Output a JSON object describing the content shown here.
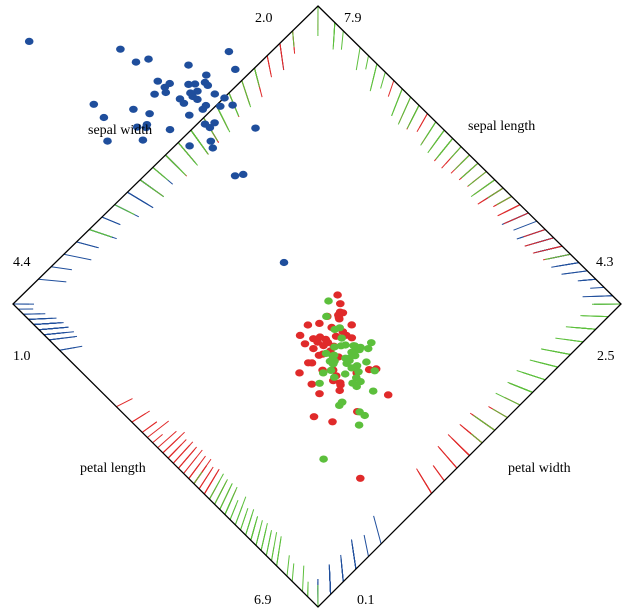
{
  "chart_data": {
    "type": "scatter",
    "variant": "radviz-diamond",
    "anchors": [
      {
        "id": "sepal-length",
        "name": "sepal length",
        "min": "4.3",
        "max": "7.9",
        "corner_labels": [
          "7.9",
          "4.3"
        ]
      },
      {
        "id": "sepal-width",
        "name": "sepal width",
        "min": "2.0",
        "max": "4.4",
        "corner_labels": [
          "2.0",
          "4.4"
        ]
      },
      {
        "id": "petal-length",
        "name": "petal length",
        "min": "1.0",
        "max": "6.9",
        "corner_labels": [
          "1.0",
          "6.9"
        ]
      },
      {
        "id": "petal-width",
        "name": "petal width",
        "min": "0.1",
        "max": "2.5",
        "corner_labels": [
          "0.1",
          "2.5"
        ]
      }
    ],
    "series": [
      {
        "color": "#1f4e9c",
        "values": [
          [
            5.1,
            3.5,
            1.4,
            0.2
          ],
          [
            4.9,
            3.0,
            1.4,
            0.2
          ],
          [
            4.7,
            3.2,
            1.3,
            0.2
          ],
          [
            4.6,
            3.1,
            1.5,
            0.2
          ],
          [
            5.0,
            3.6,
            1.4,
            0.2
          ],
          [
            5.4,
            3.9,
            1.7,
            0.4
          ],
          [
            4.6,
            3.4,
            1.4,
            0.3
          ],
          [
            5.0,
            3.4,
            1.5,
            0.2
          ],
          [
            4.4,
            2.9,
            1.4,
            0.2
          ],
          [
            4.9,
            3.1,
            1.5,
            0.1
          ],
          [
            5.4,
            3.7,
            1.5,
            0.2
          ],
          [
            4.8,
            3.4,
            1.6,
            0.2
          ],
          [
            4.8,
            3.0,
            1.4,
            0.1
          ],
          [
            4.3,
            3.0,
            1.1,
            0.1
          ],
          [
            5.8,
            4.0,
            1.2,
            0.2
          ],
          [
            5.7,
            4.4,
            1.5,
            0.4
          ],
          [
            5.4,
            3.9,
            1.3,
            0.4
          ],
          [
            5.1,
            3.5,
            1.4,
            0.3
          ],
          [
            5.7,
            3.8,
            1.7,
            0.3
          ],
          [
            5.1,
            3.8,
            1.5,
            0.3
          ],
          [
            5.4,
            3.4,
            1.7,
            0.2
          ],
          [
            5.1,
            3.7,
            1.5,
            0.4
          ],
          [
            4.6,
            3.6,
            1.0,
            0.2
          ],
          [
            5.1,
            3.3,
            1.7,
            0.5
          ],
          [
            4.8,
            3.4,
            1.9,
            0.2
          ],
          [
            5.0,
            3.0,
            1.6,
            0.2
          ],
          [
            5.0,
            3.4,
            1.6,
            0.4
          ],
          [
            5.2,
            3.5,
            1.5,
            0.2
          ],
          [
            5.2,
            3.4,
            1.4,
            0.2
          ],
          [
            4.7,
            3.2,
            1.6,
            0.2
          ],
          [
            4.8,
            3.1,
            1.6,
            0.2
          ],
          [
            5.4,
            3.4,
            1.5,
            0.4
          ],
          [
            5.2,
            4.1,
            1.5,
            0.1
          ],
          [
            5.5,
            4.2,
            1.4,
            0.2
          ],
          [
            4.9,
            3.1,
            1.5,
            0.2
          ],
          [
            5.0,
            3.2,
            1.2,
            0.2
          ],
          [
            5.5,
            3.5,
            1.3,
            0.2
          ],
          [
            4.9,
            3.6,
            1.4,
            0.1
          ],
          [
            4.4,
            3.0,
            1.3,
            0.2
          ],
          [
            5.1,
            3.4,
            1.5,
            0.2
          ],
          [
            5.0,
            3.5,
            1.3,
            0.3
          ],
          [
            4.5,
            2.3,
            1.3,
            0.3
          ],
          [
            4.4,
            3.2,
            1.3,
            0.2
          ],
          [
            5.0,
            3.5,
            1.6,
            0.6
          ],
          [
            5.1,
            3.8,
            1.9,
            0.4
          ],
          [
            4.8,
            3.0,
            1.4,
            0.3
          ],
          [
            5.1,
            3.8,
            1.6,
            0.2
          ],
          [
            4.6,
            3.2,
            1.4,
            0.2
          ],
          [
            5.3,
            3.7,
            1.5,
            0.2
          ],
          [
            5.0,
            3.3,
            1.4,
            0.2
          ]
        ]
      },
      {
        "color": "#e02a2a",
        "values": [
          [
            7.0,
            3.2,
            4.7,
            1.4
          ],
          [
            6.4,
            3.2,
            4.5,
            1.5
          ],
          [
            6.9,
            3.1,
            4.9,
            1.5
          ],
          [
            5.5,
            2.3,
            4.0,
            1.3
          ],
          [
            6.5,
            2.8,
            4.6,
            1.5
          ],
          [
            5.7,
            2.8,
            4.5,
            1.3
          ],
          [
            6.3,
            3.3,
            4.7,
            1.6
          ],
          [
            4.9,
            2.4,
            3.3,
            1.0
          ],
          [
            6.6,
            2.9,
            4.6,
            1.3
          ],
          [
            5.2,
            2.7,
            3.9,
            1.4
          ],
          [
            5.0,
            2.0,
            3.5,
            1.0
          ],
          [
            5.9,
            3.0,
            4.2,
            1.5
          ],
          [
            6.0,
            2.2,
            4.0,
            1.0
          ],
          [
            6.1,
            2.9,
            4.7,
            1.4
          ],
          [
            5.6,
            2.9,
            3.6,
            1.3
          ],
          [
            6.7,
            3.1,
            4.4,
            1.4
          ],
          [
            5.6,
            3.0,
            4.5,
            1.5
          ],
          [
            5.8,
            2.7,
            4.1,
            1.0
          ],
          [
            6.2,
            2.2,
            4.5,
            1.5
          ],
          [
            5.6,
            2.5,
            3.9,
            1.1
          ],
          [
            5.9,
            3.2,
            4.8,
            1.8
          ],
          [
            6.1,
            2.8,
            4.0,
            1.3
          ],
          [
            6.3,
            2.5,
            4.9,
            1.5
          ],
          [
            6.1,
            2.8,
            4.7,
            1.2
          ],
          [
            6.4,
            2.9,
            4.3,
            1.3
          ],
          [
            6.6,
            3.0,
            4.4,
            1.4
          ],
          [
            6.8,
            2.8,
            4.8,
            1.4
          ],
          [
            6.7,
            3.0,
            5.0,
            1.7
          ],
          [
            6.0,
            2.9,
            4.5,
            1.5
          ],
          [
            5.7,
            2.6,
            3.5,
            1.0
          ],
          [
            5.5,
            2.4,
            3.8,
            1.1
          ],
          [
            5.5,
            2.4,
            3.7,
            1.0
          ],
          [
            5.8,
            2.7,
            3.9,
            1.2
          ],
          [
            6.0,
            2.7,
            5.1,
            1.6
          ],
          [
            5.4,
            3.0,
            4.5,
            1.5
          ],
          [
            6.0,
            3.4,
            4.5,
            1.6
          ],
          [
            6.7,
            3.1,
            4.7,
            1.5
          ],
          [
            6.3,
            2.3,
            4.4,
            1.3
          ],
          [
            5.6,
            3.0,
            4.1,
            1.3
          ],
          [
            5.5,
            2.5,
            4.0,
            1.3
          ],
          [
            5.5,
            2.6,
            4.4,
            1.2
          ],
          [
            6.1,
            3.0,
            4.6,
            1.4
          ],
          [
            5.8,
            2.6,
            4.0,
            1.2
          ],
          [
            5.0,
            2.3,
            3.3,
            1.0
          ],
          [
            5.6,
            2.7,
            4.2,
            1.3
          ],
          [
            5.7,
            3.0,
            4.2,
            1.2
          ],
          [
            5.7,
            2.9,
            4.2,
            1.3
          ],
          [
            6.2,
            2.9,
            4.3,
            1.3
          ],
          [
            5.1,
            2.5,
            3.0,
            1.1
          ],
          [
            5.7,
            2.8,
            4.1,
            1.3
          ]
        ]
      },
      {
        "color": "#5cbf3c",
        "values": [
          [
            6.3,
            3.3,
            6.0,
            2.5
          ],
          [
            5.8,
            2.7,
            5.1,
            1.9
          ],
          [
            7.1,
            3.0,
            5.9,
            2.1
          ],
          [
            6.3,
            2.9,
            5.6,
            1.8
          ],
          [
            6.5,
            3.0,
            5.8,
            2.2
          ],
          [
            7.6,
            3.0,
            6.6,
            2.1
          ],
          [
            4.9,
            2.5,
            4.5,
            1.7
          ],
          [
            7.3,
            2.9,
            6.3,
            1.8
          ],
          [
            6.7,
            2.5,
            5.8,
            1.8
          ],
          [
            7.2,
            3.6,
            6.1,
            2.5
          ],
          [
            6.5,
            3.2,
            5.1,
            2.0
          ],
          [
            6.4,
            2.7,
            5.3,
            1.9
          ],
          [
            6.8,
            3.0,
            5.5,
            2.1
          ],
          [
            5.7,
            2.5,
            5.0,
            2.0
          ],
          [
            5.8,
            2.8,
            5.1,
            2.4
          ],
          [
            6.4,
            3.2,
            5.3,
            2.3
          ],
          [
            6.5,
            3.0,
            5.5,
            1.8
          ],
          [
            7.7,
            3.8,
            6.7,
            2.2
          ],
          [
            7.7,
            2.6,
            6.9,
            2.3
          ],
          [
            6.0,
            2.2,
            5.0,
            1.5
          ],
          [
            6.9,
            3.2,
            5.7,
            2.3
          ],
          [
            5.6,
            2.8,
            4.9,
            2.0
          ],
          [
            7.7,
            2.8,
            6.7,
            2.0
          ],
          [
            6.3,
            2.7,
            4.9,
            1.8
          ],
          [
            6.7,
            3.3,
            5.7,
            2.1
          ],
          [
            7.2,
            3.2,
            6.0,
            1.8
          ],
          [
            6.2,
            2.8,
            4.8,
            1.8
          ],
          [
            6.1,
            3.0,
            4.9,
            1.8
          ],
          [
            6.4,
            2.8,
            5.6,
            2.1
          ],
          [
            7.2,
            3.0,
            5.8,
            1.6
          ],
          [
            7.4,
            2.8,
            6.1,
            1.9
          ],
          [
            7.9,
            3.8,
            6.4,
            2.0
          ],
          [
            6.4,
            2.8,
            5.6,
            2.2
          ],
          [
            6.3,
            2.8,
            5.1,
            1.5
          ],
          [
            6.1,
            2.6,
            5.6,
            1.4
          ],
          [
            7.7,
            3.0,
            6.1,
            2.3
          ],
          [
            6.3,
            3.4,
            5.6,
            2.4
          ],
          [
            6.4,
            3.1,
            5.5,
            1.8
          ],
          [
            6.0,
            3.0,
            4.8,
            1.8
          ],
          [
            6.9,
            3.1,
            5.4,
            2.1
          ],
          [
            6.7,
            3.1,
            5.6,
            2.4
          ],
          [
            6.9,
            3.1,
            5.1,
            2.3
          ],
          [
            5.8,
            2.7,
            5.1,
            1.9
          ],
          [
            6.8,
            3.2,
            5.9,
            2.3
          ],
          [
            6.7,
            3.3,
            5.7,
            2.5
          ],
          [
            6.7,
            3.0,
            5.2,
            2.3
          ],
          [
            6.3,
            2.5,
            5.0,
            1.9
          ],
          [
            6.5,
            3.0,
            5.2,
            2.0
          ],
          [
            6.2,
            3.4,
            5.4,
            2.3
          ],
          [
            5.9,
            3.0,
            5.1,
            1.8
          ]
        ]
      }
    ]
  }
}
